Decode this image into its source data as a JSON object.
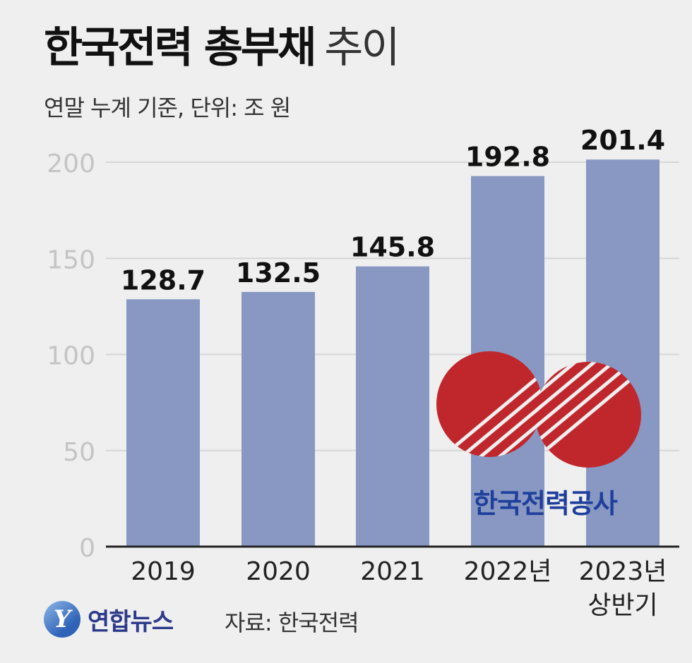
{
  "title": {
    "bold": "한국전력 총부채",
    "light": "추이"
  },
  "subtitle": "연말 누계 기준, 단위: 조 원",
  "chart_data": {
    "type": "bar",
    "categories": [
      "2019",
      "2020",
      "2021",
      "2022년",
      "2023년\n상반기"
    ],
    "values": [
      128.7,
      132.5,
      145.8,
      192.8,
      201.4
    ],
    "value_labels": [
      "128.7",
      "132.5",
      "145.8",
      "192.8",
      "201.4"
    ],
    "ylim": [
      0,
      200
    ],
    "yticks": [
      "0",
      "50",
      "100",
      "150",
      "200"
    ],
    "title": "한국전력 총부채 추이",
    "ylabel": "",
    "xlabel": "",
    "grid": true,
    "bar_color": "#8898c3"
  },
  "logo": {
    "company": "한국전력공사",
    "red": "#c0272d",
    "blue": "#1f3f9c"
  },
  "footer": {
    "agency": "연합뉴스",
    "mark": "Y",
    "source": "자료: 한국전력"
  }
}
